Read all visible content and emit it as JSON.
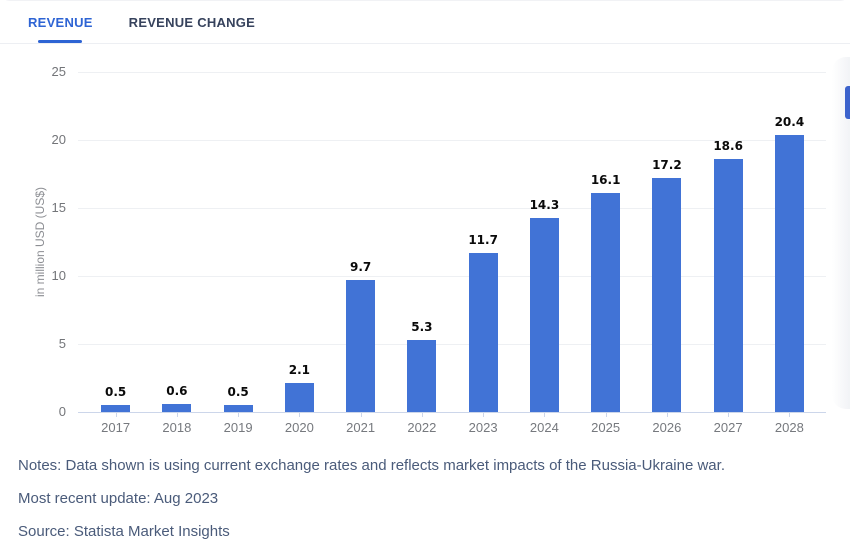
{
  "tabs": [
    {
      "label": "REVENUE",
      "active": true
    },
    {
      "label": "REVENUE CHANGE",
      "active": false
    }
  ],
  "chart_data": {
    "type": "bar",
    "categories": [
      "2017",
      "2018",
      "2019",
      "2020",
      "2021",
      "2022",
      "2023",
      "2024",
      "2025",
      "2026",
      "2027",
      "2028"
    ],
    "values": [
      0.5,
      0.6,
      0.5,
      2.1,
      9.7,
      5.3,
      11.7,
      14.3,
      16.1,
      17.2,
      18.6,
      20.4
    ],
    "value_labels": [
      "0.5",
      "0.6",
      "0.5",
      "2.1",
      "9.7",
      "5.3",
      "11.7",
      "14.3",
      "16.1",
      "17.2",
      "18.6",
      "20.4"
    ],
    "title": "",
    "xlabel": "",
    "ylabel": "in million USD (US$)",
    "ylim": [
      0,
      25
    ],
    "yticks": [
      0,
      5,
      10,
      15,
      20,
      25
    ],
    "grid": "horizontal",
    "legend": "none",
    "bar_color": "#4173d6"
  },
  "footer": {
    "notes": "Notes: Data shown is using current exchange rates and reflects market impacts of the Russia-Ukraine war.",
    "updated": "Most recent update: Aug 2023",
    "source": "Source: Statista Market Insights"
  },
  "colors": {
    "accent": "#2e64d4",
    "bar": "#4173d6",
    "tab_inactive": "#36425c",
    "notes_text": "#4a5b7a",
    "axis_line": "#ccd6ea",
    "gridline": "#eef0f3"
  }
}
